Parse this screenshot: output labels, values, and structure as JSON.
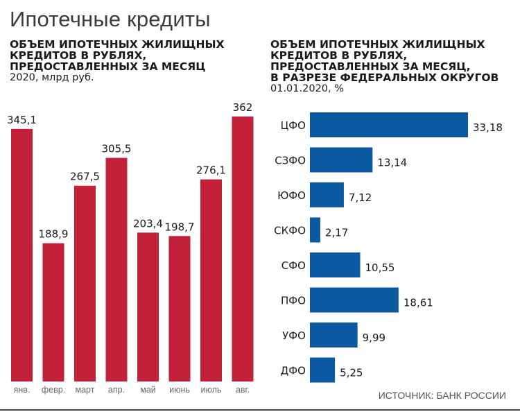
{
  "title": "Ипотечные кредиты",
  "source": "ИСТОЧНИК: БАНК РОССИИ",
  "colors": {
    "left_bar": "#c32139",
    "right_bar": "#0b5aa1"
  },
  "chart_data": [
    {
      "type": "bar",
      "title_lines": [
        "ОБЪЕМ ИПОТЕЧНЫХ ЖИЛИЩНЫХ",
        "КРЕДИТОВ В РУБЛЯХ,",
        "ПРЕДОСТАВЛЕННЫХ ЗА МЕСЯЦ"
      ],
      "unit": "2020, млрд руб.",
      "categories": [
        "янв.",
        "февр.",
        "март",
        "апр.",
        "май",
        "июнь",
        "июль",
        "авг."
      ],
      "values": [
        345.1,
        188.9,
        267.5,
        305.5,
        203.4,
        198.7,
        276.1,
        362
      ],
      "value_labels": [
        "345,1",
        "188,9",
        "267,5",
        "305,5",
        "203,4",
        "198,7",
        "276,1",
        "362"
      ],
      "ylim": [
        0,
        362
      ]
    },
    {
      "type": "bar",
      "orientation": "horizontal",
      "title_lines": [
        "ОБЪЕМ ИПОТЕЧНЫХ ЖИЛИЩНЫХ",
        "КРЕДИТОВ В РУБЛЯХ,",
        "ПРЕДОСТАВЛЕННЫХ ЗА МЕСЯЦ,",
        "В РАЗРЕЗЕ ФЕДЕРАЛЬНЫХ ОКРУГОВ"
      ],
      "unit": "01.01.2020, %",
      "categories": [
        "ЦФО",
        "СЗФО",
        "ЮФО",
        "СКФО",
        "СФО",
        "ПФО",
        "УФО",
        "ДФО"
      ],
      "values": [
        33.18,
        13.14,
        7.12,
        2.17,
        10.55,
        18.61,
        9.99,
        5.25
      ],
      "value_labels": [
        "33,18",
        "13,14",
        "7,12",
        "2,17",
        "10,55",
        "18,61",
        "9,99",
        "5,25"
      ],
      "xlim": [
        0,
        33.18
      ]
    }
  ]
}
